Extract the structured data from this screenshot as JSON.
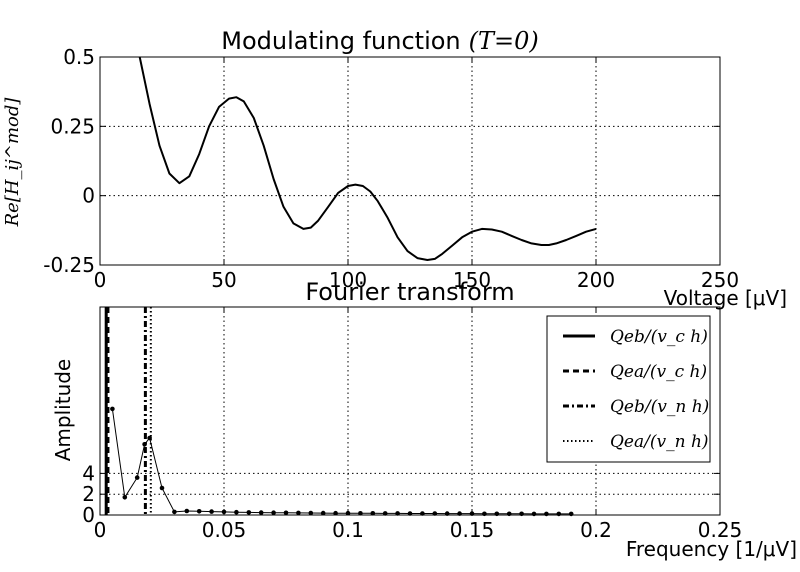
{
  "chart_data": [
    {
      "type": "line",
      "title": "Modulating function",
      "title_math": "(T=0)",
      "xlabel": "Voltage [μV]",
      "ylabel": "Re[H_ij^mod]",
      "xlim": [
        0,
        250
      ],
      "ylim": [
        -0.25,
        0.5
      ],
      "grid": true,
      "x_ticks": [
        0,
        50,
        100,
        150,
        200,
        250
      ],
      "x_tick_labels": [
        "0",
        "50",
        "100",
        "150",
        "200",
        "250"
      ],
      "y_ticks": [
        -0.25,
        0,
        0.25,
        0.5
      ],
      "y_tick_labels": [
        "-0.25",
        "0",
        "0.25",
        "0.5"
      ],
      "series": [
        {
          "x": [
            16,
            20,
            24,
            28,
            32,
            36,
            40,
            44,
            48,
            52,
            55,
            58,
            62,
            66,
            70,
            74,
            78,
            82,
            85,
            88,
            92,
            96,
            100,
            103,
            106,
            109,
            112,
            116,
            120,
            124,
            128,
            132,
            135,
            138,
            142,
            146,
            150,
            154,
            158,
            162,
            166,
            170,
            174,
            178,
            181,
            184,
            188,
            192,
            196,
            200
          ],
          "y": [
            0.5,
            0.33,
            0.18,
            0.08,
            0.045,
            0.07,
            0.15,
            0.25,
            0.32,
            0.35,
            0.355,
            0.34,
            0.28,
            0.18,
            0.06,
            -0.04,
            -0.1,
            -0.12,
            -0.115,
            -0.09,
            -0.04,
            0.01,
            0.035,
            0.04,
            0.035,
            0.015,
            -0.02,
            -0.08,
            -0.15,
            -0.2,
            -0.225,
            -0.232,
            -0.228,
            -0.21,
            -0.18,
            -0.15,
            -0.13,
            -0.12,
            -0.122,
            -0.13,
            -0.145,
            -0.16,
            -0.172,
            -0.178,
            -0.178,
            -0.172,
            -0.16,
            -0.145,
            -0.13,
            -0.12
          ]
        }
      ]
    },
    {
      "type": "line",
      "title": "Fourier transform",
      "xlabel": "Frequency [1/μV]",
      "ylabel": "Amplitude",
      "xlim": [
        0,
        0.25
      ],
      "ylim": [
        0,
        20
      ],
      "grid": true,
      "x_ticks": [
        0,
        0.05,
        0.1,
        0.15,
        0.2,
        0.25
      ],
      "x_tick_labels": [
        "0",
        "0.05",
        "0.1",
        "0.15",
        "0.2",
        "0.25"
      ],
      "y_ticks": [
        0,
        2,
        4
      ],
      "y_tick_labels": [
        "0",
        "2",
        "4"
      ],
      "series": [
        {
          "x": [
            0.005,
            0.01,
            0.015,
            0.018,
            0.02,
            0.025,
            0.03,
            0.035,
            0.04,
            0.045,
            0.05,
            0.055,
            0.06,
            0.065,
            0.07,
            0.075,
            0.08,
            0.085,
            0.09,
            0.095,
            0.1,
            0.105,
            0.11,
            0.115,
            0.12,
            0.125,
            0.13,
            0.135,
            0.14,
            0.145,
            0.15,
            0.155,
            0.16,
            0.165,
            0.17,
            0.175,
            0.18,
            0.185,
            0.19
          ],
          "y": [
            10.2,
            1.7,
            3.6,
            6.8,
            7.4,
            2.6,
            0.3,
            0.38,
            0.36,
            0.33,
            0.3,
            0.27,
            0.25,
            0.23,
            0.22,
            0.21,
            0.2,
            0.19,
            0.18,
            0.17,
            0.17,
            0.16,
            0.16,
            0.15,
            0.15,
            0.14,
            0.14,
            0.14,
            0.13,
            0.13,
            0.13,
            0.12,
            0.12,
            0.12,
            0.12,
            0.11,
            0.11,
            0.11,
            0.11
          ]
        }
      ],
      "vlines": [
        {
          "x": 0.0025,
          "style": "solid",
          "label": "Qeb/(v_c h)"
        },
        {
          "x": 0.0032,
          "style": "dashed",
          "label": "Qea/(v_c h)"
        },
        {
          "x": 0.0183,
          "style": "dashdot",
          "label": "Qeb/(v_n h)"
        },
        {
          "x": 0.0205,
          "style": "dotted",
          "label": "Qea/(v_n h)"
        }
      ],
      "legend_position": "top-right"
    }
  ]
}
